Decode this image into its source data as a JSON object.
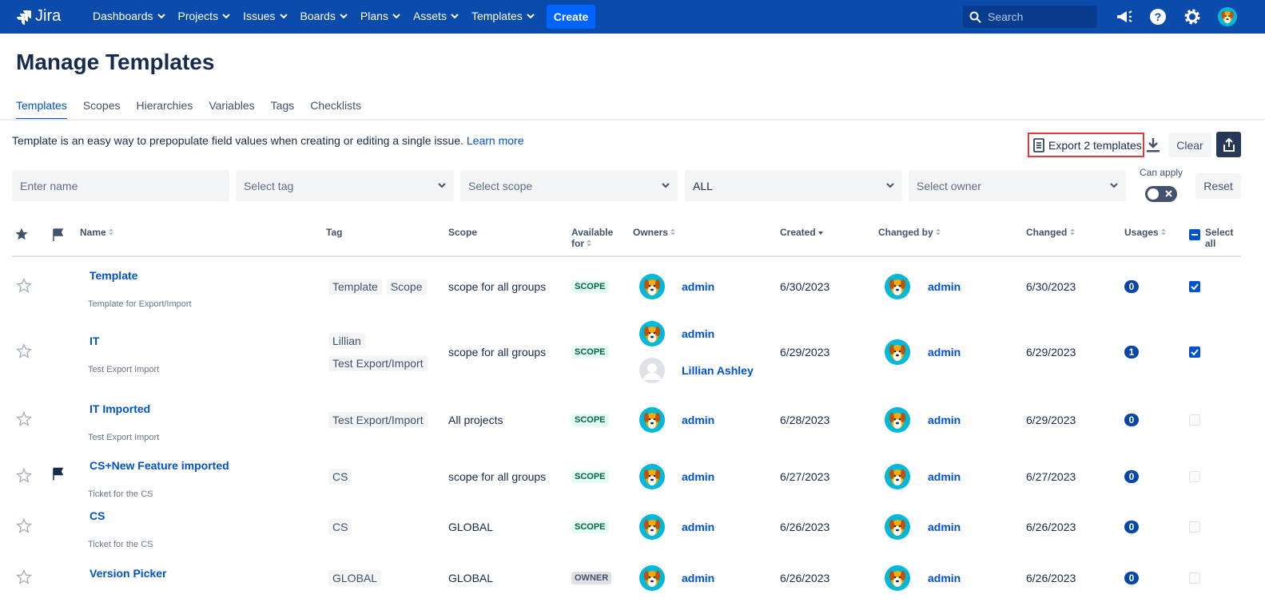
{
  "nav": {
    "logo": "Jira",
    "items": [
      "Dashboards",
      "Projects",
      "Issues",
      "Boards",
      "Plans",
      "Assets",
      "Templates"
    ],
    "create": "Create",
    "search": "Search"
  },
  "page": {
    "title": "Manage Templates",
    "tabs": [
      "Templates",
      "Scopes",
      "Hierarchies",
      "Variables",
      "Tags",
      "Checklists"
    ],
    "active_tab": 0,
    "intro": "Template is an easy way to prepopulate field values when creating or editing a single issue.",
    "learn_more": "Learn more",
    "export": "Export 2 templates",
    "clear": "Clear"
  },
  "filters": {
    "name": "Enter name",
    "tag": "Select tag",
    "scope": "Select scope",
    "available": "ALL",
    "owner": "Select owner",
    "can_apply": "Can apply",
    "reset": "Reset"
  },
  "table": {
    "headers": [
      {
        "label": "Name",
        "sort": "both"
      },
      {
        "label": "Tag"
      },
      {
        "label": "Scope"
      },
      {
        "label": "Available for",
        "sort": "both"
      },
      {
        "label": "Owners",
        "sort": "both"
      },
      {
        "label": "Created",
        "sort": "desc"
      },
      {
        "label": "Changed by",
        "sort": "both"
      },
      {
        "label": "Changed",
        "sort": "both"
      },
      {
        "label": "Usages",
        "sort": "both"
      },
      {
        "label": "Select all"
      }
    ],
    "rows": [
      {
        "name": "Template",
        "description": "Template for Export/Import",
        "tags": [
          "Template",
          "Scope"
        ],
        "scope": "scope for all groups",
        "available": "SCOPE",
        "available_bg": "#e3fcef",
        "available_fg": "#006644",
        "owners": [
          {
            "name": "admin",
            "avatar": "dog"
          }
        ],
        "created": "6/30/2023",
        "changed_by": "admin",
        "changed": "6/30/2023",
        "usages": "0",
        "selected": true,
        "flagged": false
      },
      {
        "name": "IT",
        "description": "Test Export Import",
        "tags": [
          "Lillian",
          "Test Export/Import"
        ],
        "scope": "scope for all groups",
        "available": "SCOPE",
        "available_bg": "#e3fcef",
        "available_fg": "#006644",
        "owners": [
          {
            "name": "admin",
            "avatar": "dog"
          },
          {
            "name": "Lillian Ashley",
            "avatar": "default"
          }
        ],
        "created": "6/29/2023",
        "changed_by": "admin",
        "changed": "6/29/2023",
        "usages": "1",
        "selected": true,
        "flagged": false
      },
      {
        "name": "IT Imported",
        "description": "Test Export Import",
        "tags": [
          "Test Export/Import"
        ],
        "scope": "All projects",
        "available": "SCOPE",
        "available_bg": "#e3fcef",
        "available_fg": "#006644",
        "owners": [
          {
            "name": "admin",
            "avatar": "dog"
          }
        ],
        "created": "6/28/2023",
        "changed_by": "admin",
        "changed": "6/29/2023",
        "usages": "0",
        "selected": false,
        "flagged": false
      },
      {
        "name": "CS+New Feature imported",
        "description": "Ticket for the CS",
        "tags": [
          "CS"
        ],
        "scope": "scope for all groups",
        "available": "SCOPE",
        "available_bg": "#e3fcef",
        "available_fg": "#006644",
        "owners": [
          {
            "name": "admin",
            "avatar": "dog"
          }
        ],
        "created": "6/27/2023",
        "changed_by": "admin",
        "changed": "6/27/2023",
        "usages": "0",
        "selected": false,
        "flagged": true
      },
      {
        "name": "CS",
        "description": "Ticket for the CS",
        "tags": [
          "CS"
        ],
        "scope": "GLOBAL",
        "available": "SCOPE",
        "available_bg": "#e3fcef",
        "available_fg": "#006644",
        "owners": [
          {
            "name": "admin",
            "avatar": "dog"
          }
        ],
        "created": "6/26/2023",
        "changed_by": "admin",
        "changed": "6/26/2023",
        "usages": "0",
        "selected": false,
        "flagged": false
      },
      {
        "name": "Version Picker",
        "tags": [
          "GLOBAL"
        ],
        "scope": "GLOBAL",
        "available": "OWNER",
        "available_bg": "#dfe1e6",
        "available_fg": "#42526e",
        "owners": [
          {
            "name": "admin",
            "avatar": "dog"
          }
        ],
        "created": "6/26/2023",
        "changed_by": "admin",
        "changed": "6/26/2023",
        "usages": "0",
        "selected": false,
        "flagged": false
      }
    ]
  }
}
